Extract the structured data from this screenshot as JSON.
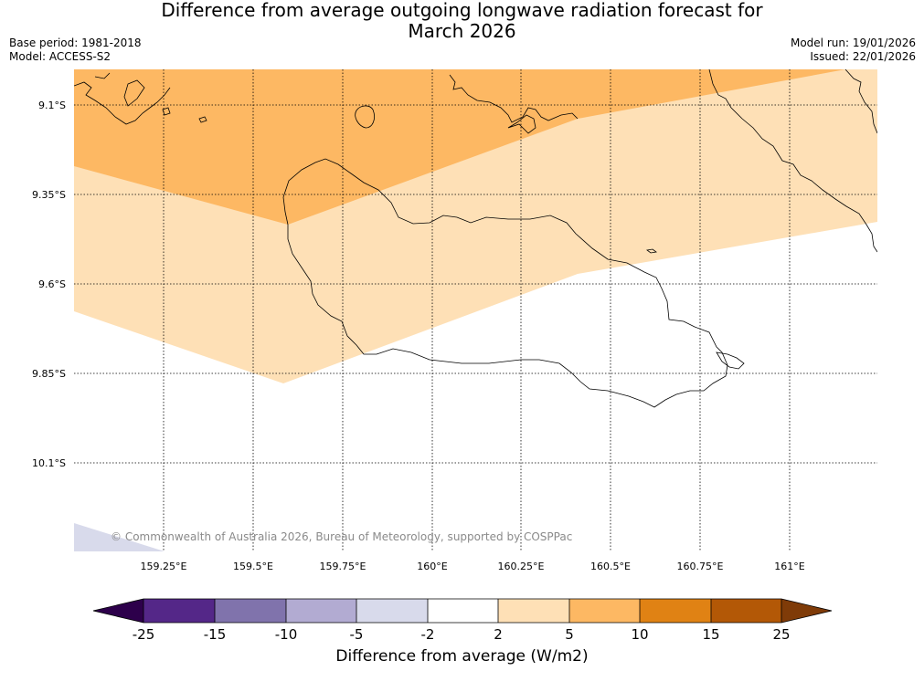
{
  "title_line1": "Difference from average outgoing longwave radiation forecast for",
  "title_line2": "March 2026",
  "meta": {
    "base_period": "Base period: 1981-2018",
    "model": "Model: ACCESS-S2",
    "model_run": "Model run: 19/01/2026",
    "issued": "Issued: 22/01/2026"
  },
  "map": {
    "lat_labels": [
      "9.1°S",
      "9.35°S",
      "9.6°S",
      "9.85°S",
      "10.1°S"
    ],
    "lon_labels": [
      "159.25°E",
      "159.5°E",
      "159.75°E",
      "160°E",
      "160.25°E",
      "160.5°E",
      "160.75°E",
      "161°E"
    ],
    "copyright": "© Commonwealth of Australia 2026, Bureau of Meteorology, supported by COSPPac"
  },
  "colorbar": {
    "title": "Difference from average (W/m2)",
    "ticks": [
      "-25",
      "-15",
      "-10",
      "-5",
      "-2",
      "2",
      "5",
      "10",
      "15",
      "25"
    ],
    "colors": {
      "lt_minus25": "#2d004b",
      "minus25_minus15": "#542788",
      "minus15_minus10": "#8073ac",
      "minus10_minus5": "#b2abd2",
      "minus5_minus2": "#d8daeb",
      "minus2_2": "#ffffff",
      "p2_5": "#fee0b6",
      "p5_10": "#fdb863",
      "p10_15": "#e08214",
      "p15_25": "#b35806",
      "gt_25": "#7f3b08"
    }
  }
}
